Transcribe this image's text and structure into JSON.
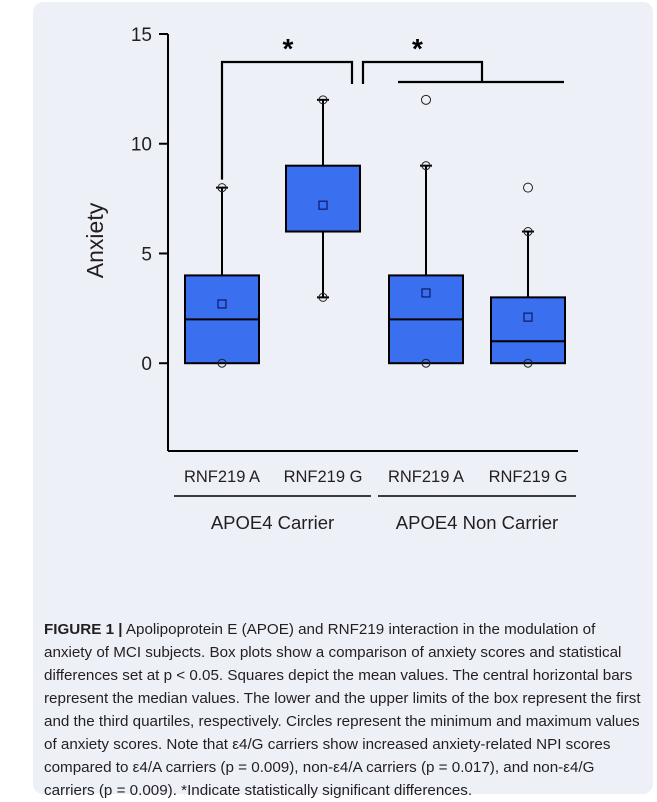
{
  "chart_data": {
    "type": "box",
    "ylabel": "Anxiety",
    "ylim": [
      -4,
      15
    ],
    "yticks": [
      0,
      5,
      10,
      15
    ],
    "categories": [
      "RNF219 A",
      "RNF219 G",
      "RNF219 A",
      "RNF219 G"
    ],
    "groups": [
      {
        "label": "APOE4 Carrier",
        "categories": [
          0,
          1
        ]
      },
      {
        "label": "APOE4 Non Carrier",
        "categories": [
          2,
          3
        ]
      }
    ],
    "boxes": [
      {
        "category": "RNF219 A",
        "group": "APOE4 Carrier",
        "min": 0,
        "q1": 0,
        "median": 2,
        "q3": 4,
        "max": 8,
        "mean": 2.7,
        "outliers": []
      },
      {
        "category": "RNF219 G",
        "group": "APOE4 Carrier",
        "min": 3,
        "q1": 6,
        "median": 6,
        "q3": 9,
        "max": 12,
        "mean": 7.2,
        "outliers": []
      },
      {
        "category": "RNF219 A",
        "group": "APOE4 Non Carrier",
        "min": 0,
        "q1": 0,
        "median": 2,
        "q3": 4,
        "max": 9,
        "mean": 3.2,
        "outliers": [
          12
        ]
      },
      {
        "category": "RNF219 G",
        "group": "APOE4 Non Carrier",
        "min": 0,
        "q1": 0,
        "median": 1,
        "q3": 3,
        "max": 6,
        "mean": 2.1,
        "outliers": [
          8
        ]
      }
    ],
    "significance": [
      {
        "from": [
          0
        ],
        "to": [
          1
        ],
        "label": "*"
      },
      {
        "from": [
          1
        ],
        "to": [
          2,
          3
        ],
        "label": "*"
      }
    ],
    "colors": {
      "box_fill": "#3a6ff0",
      "line": "#000000",
      "panel": "#eef0f8"
    }
  },
  "caption": {
    "label": "FIGURE 1 |",
    "text": "Apolipoprotein E (APOE) and RNF219 interaction in the modulation of anxiety of MCI subjects. Box plots show a comparison of anxiety scores and statistical differences set at p < 0.05. Squares depict the mean values. The central horizontal bars represent the median values. The lower and the upper limits of the box represent the first and the third quartiles, respectively. Circles represent the minimum and maximum values of anxiety scores. Note that ε4/G carriers show increased anxiety-related NPI scores compared to ε4/A carriers (p = 0.009), non-ε4/A carriers (p = 0.017), and non-ε4/G carriers (p = 0.009). *Indicate statistically significant differences."
  }
}
